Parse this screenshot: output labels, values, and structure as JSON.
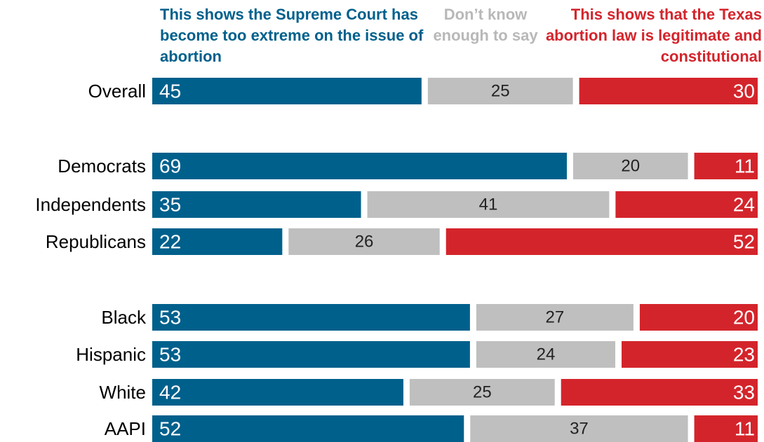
{
  "chart_data": {
    "type": "stacked_bar_horizontal",
    "categories": [
      "Overall",
      "Democrats",
      "Independents",
      "Republicans",
      "Black",
      "Hispanic",
      "White",
      "AAPI"
    ],
    "series": [
      {
        "name": "This shows the Supreme Court has become too extreme on the issue of abortion",
        "color": "#00608c",
        "values": [
          45,
          69,
          35,
          22,
          53,
          53,
          42,
          52
        ]
      },
      {
        "name": "Don’t know enough to say",
        "color": "#bfbfbf",
        "values": [
          25,
          20,
          41,
          26,
          27,
          24,
          25,
          37
        ]
      },
      {
        "name": "This shows that the Texas abortion law is legitimate and constitutional",
        "color": "#d4242b",
        "values": [
          30,
          11,
          24,
          52,
          20,
          23,
          33,
          11
        ]
      }
    ]
  }
}
